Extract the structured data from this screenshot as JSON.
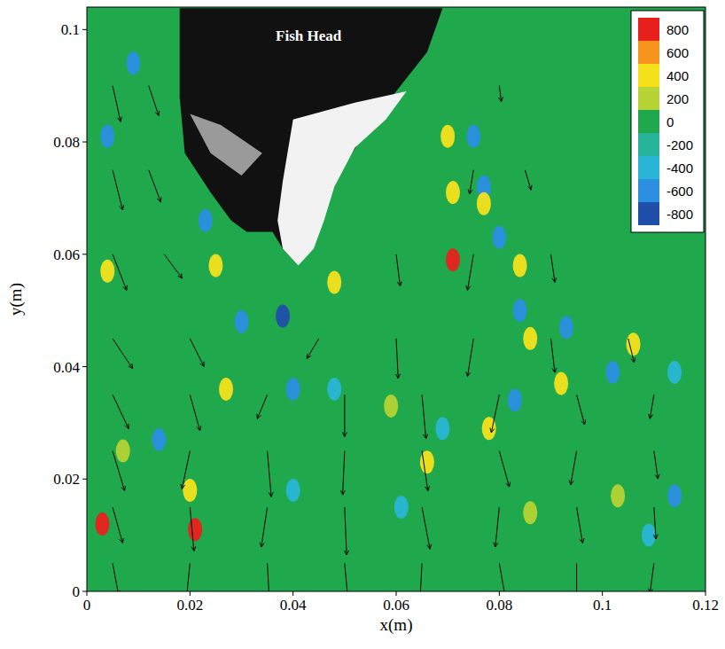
{
  "chart_data": {
    "type": "vector_field",
    "annotation": "Fish Head",
    "x_label": "x(m)",
    "y_label": "y(m)",
    "xlim": [
      0,
      0.12
    ],
    "ylim": [
      0,
      0.104
    ],
    "xticks": [
      0,
      0.02,
      0.04,
      0.06,
      0.08,
      0.1,
      0.12
    ],
    "yticks": [
      0,
      0.02,
      0.04,
      0.06,
      0.08,
      0.1
    ],
    "colorbar": {
      "ticks": [
        800,
        600,
        400,
        200,
        0,
        -200,
        -400,
        -600,
        -800
      ],
      "colors": [
        "#e8201c",
        "#f7941d",
        "#f5e11b",
        "#b5d334",
        "#20a84c",
        "#26b49a",
        "#29b6d6",
        "#2b8ee0",
        "#1f4fa8"
      ]
    },
    "vortices": {
      "x": [
        0.071,
        0.071,
        0.07,
        0.075,
        0.077,
        0.077,
        0.08,
        0.084,
        0.084,
        0.086,
        0.093,
        0.092,
        0.102,
        0.106,
        0.114,
        0.114,
        0.103,
        0.109,
        0.004,
        0.009,
        0.004,
        0.023,
        0.03,
        0.038,
        0.027,
        0.021,
        0.02,
        0.003,
        0.007,
        0.014,
        0.04,
        0.048,
        0.048,
        0.059,
        0.066,
        0.069,
        0.078,
        0.083,
        0.025,
        0.04,
        0.086,
        0.061
      ],
      "y": [
        0.059,
        0.071,
        0.081,
        0.081,
        0.072,
        0.069,
        0.063,
        0.058,
        0.05,
        0.045,
        0.047,
        0.037,
        0.039,
        0.044,
        0.039,
        0.017,
        0.017,
        0.01,
        0.081,
        0.094,
        0.057,
        0.066,
        0.048,
        0.049,
        0.036,
        0.011,
        0.018,
        0.012,
        0.025,
        0.027,
        0.036,
        0.036,
        0.055,
        0.033,
        0.023,
        0.029,
        0.029,
        0.034,
        0.058,
        0.018,
        0.014,
        0.015
      ],
      "values": [
        800,
        400,
        400,
        -600,
        -600,
        400,
        -600,
        400,
        -600,
        400,
        -600,
        400,
        -600,
        400,
        -400,
        -600,
        200,
        -400,
        -600,
        -600,
        400,
        -600,
        -600,
        -800,
        400,
        800,
        400,
        800,
        200,
        -600,
        -600,
        -400,
        400,
        200,
        400,
        -400,
        400,
        -600,
        400,
        -400,
        200,
        -400
      ]
    },
    "vectors": {
      "x": [
        0.005,
        0.02,
        0.035,
        0.05,
        0.065,
        0.08,
        0.095,
        0.11,
        0.005,
        0.02,
        0.035,
        0.05,
        0.065,
        0.08,
        0.095,
        0.11,
        0.005,
        0.02,
        0.035,
        0.05,
        0.065,
        0.08,
        0.095,
        0.11,
        0.005,
        0.02,
        0.035,
        0.05,
        0.065,
        0.08,
        0.095,
        0.11,
        0.005,
        0.02,
        0.045,
        0.06,
        0.075,
        0.09,
        0.105,
        0.005,
        0.015,
        0.06,
        0.075,
        0.09,
        0.005,
        0.012,
        0.075,
        0.085,
        0.005,
        0.012,
        0.08
      ],
      "y": [
        0.005,
        0.005,
        0.005,
        0.005,
        0.005,
        0.005,
        0.005,
        0.005,
        0.015,
        0.015,
        0.015,
        0.015,
        0.015,
        0.015,
        0.015,
        0.015,
        0.025,
        0.025,
        0.025,
        0.025,
        0.025,
        0.025,
        0.025,
        0.025,
        0.035,
        0.035,
        0.035,
        0.035,
        0.035,
        0.035,
        0.035,
        0.035,
        0.045,
        0.045,
        0.045,
        0.045,
        0.045,
        0.045,
        0.045,
        0.06,
        0.06,
        0.06,
        0.06,
        0.06,
        0.075,
        0.075,
        0.075,
        0.075,
        0.09,
        0.09,
        0.09
      ],
      "u": [
        0.03,
        -0.02,
        0.01,
        0.02,
        -0.01,
        0.03,
        0.0,
        -0.02,
        0.05,
        0.02,
        -0.03,
        0.01,
        0.04,
        -0.02,
        0.03,
        0.01,
        0.06,
        -0.04,
        0.02,
        -0.01,
        0.03,
        0.05,
        -0.03,
        0.02,
        0.08,
        0.05,
        -0.05,
        0.0,
        0.02,
        -0.04,
        0.04,
        -0.02,
        0.1,
        0.07,
        -0.06,
        0.01,
        -0.03,
        0.02,
        0.03,
        0.07,
        0.09,
        0.02,
        -0.03,
        0.02,
        0.05,
        0.06,
        -0.02,
        0.03,
        0.04,
        0.05,
        0.01
      ],
      "v": [
        -0.16,
        -0.2,
        -0.18,
        -0.22,
        -0.19,
        -0.17,
        -0.2,
        -0.15,
        -0.18,
        -0.22,
        -0.2,
        -0.24,
        -0.21,
        -0.2,
        -0.18,
        -0.16,
        -0.2,
        -0.19,
        -0.23,
        -0.22,
        -0.2,
        -0.18,
        -0.17,
        -0.14,
        -0.17,
        -0.18,
        -0.12,
        -0.21,
        -0.22,
        -0.19,
        -0.15,
        -0.12,
        -0.15,
        -0.14,
        -0.1,
        -0.2,
        -0.19,
        -0.17,
        -0.12,
        -0.18,
        -0.12,
        -0.16,
        -0.18,
        -0.14,
        -0.2,
        -0.16,
        -0.12,
        -0.1,
        -0.18,
        -0.15,
        -0.08
      ]
    }
  }
}
